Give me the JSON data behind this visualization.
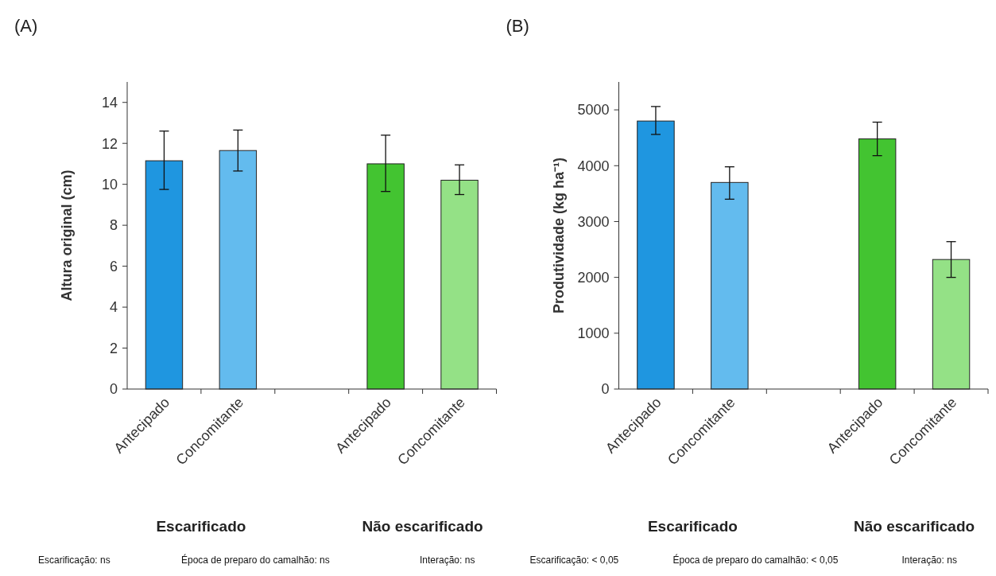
{
  "chart_data": [
    {
      "type": "bar",
      "title": "(A)",
      "ylabel": "Altura original (cm)",
      "categories": [
        "Antecipado",
        "Concomitante",
        null,
        "Antecipado",
        "Concomitante"
      ],
      "values": [
        11.15,
        11.65,
        null,
        11.0,
        10.2
      ],
      "colors": [
        "#1f96e0",
        "#63bbee",
        null,
        "#43c431",
        "#94e186"
      ],
      "errors": [
        [
          9.75,
          12.6
        ],
        [
          10.65,
          12.65
        ],
        null,
        [
          9.65,
          12.4
        ],
        [
          9.5,
          10.95
        ]
      ],
      "ylim": [
        0,
        15
      ],
      "yticks": [
        0,
        2,
        4,
        6,
        8,
        10,
        12,
        14
      ],
      "annotations": [
        "Escarificado",
        "Não escarificado",
        "Escarificação: ns",
        "Época de preparo do camalhão: ns",
        "Interação: ns"
      ]
    },
    {
      "type": "bar",
      "title": "(B)",
      "ylabel": "Produtividade (kg ha⁻¹)",
      "categories": [
        "Antecipado",
        "Concomitante",
        null,
        "Antecipado",
        "Concomitante"
      ],
      "values": [
        4800,
        3700,
        null,
        4480,
        2320
      ],
      "colors": [
        "#1f96e0",
        "#63bbee",
        null,
        "#43c431",
        "#94e186"
      ],
      "errors": [
        [
          4560,
          5060
        ],
        [
          3400,
          3980
        ],
        null,
        [
          4180,
          4780
        ],
        [
          2000,
          2640
        ]
      ],
      "ylim": [
        0,
        5500
      ],
      "yticks": [
        0,
        1000,
        2000,
        3000,
        4000,
        5000
      ],
      "annotations": [
        "Escarificado",
        "Não escarificado",
        "Escarificação: < 0,05",
        "Época de preparo do camalhão: < 0,05",
        "Interação: ns"
      ]
    }
  ]
}
